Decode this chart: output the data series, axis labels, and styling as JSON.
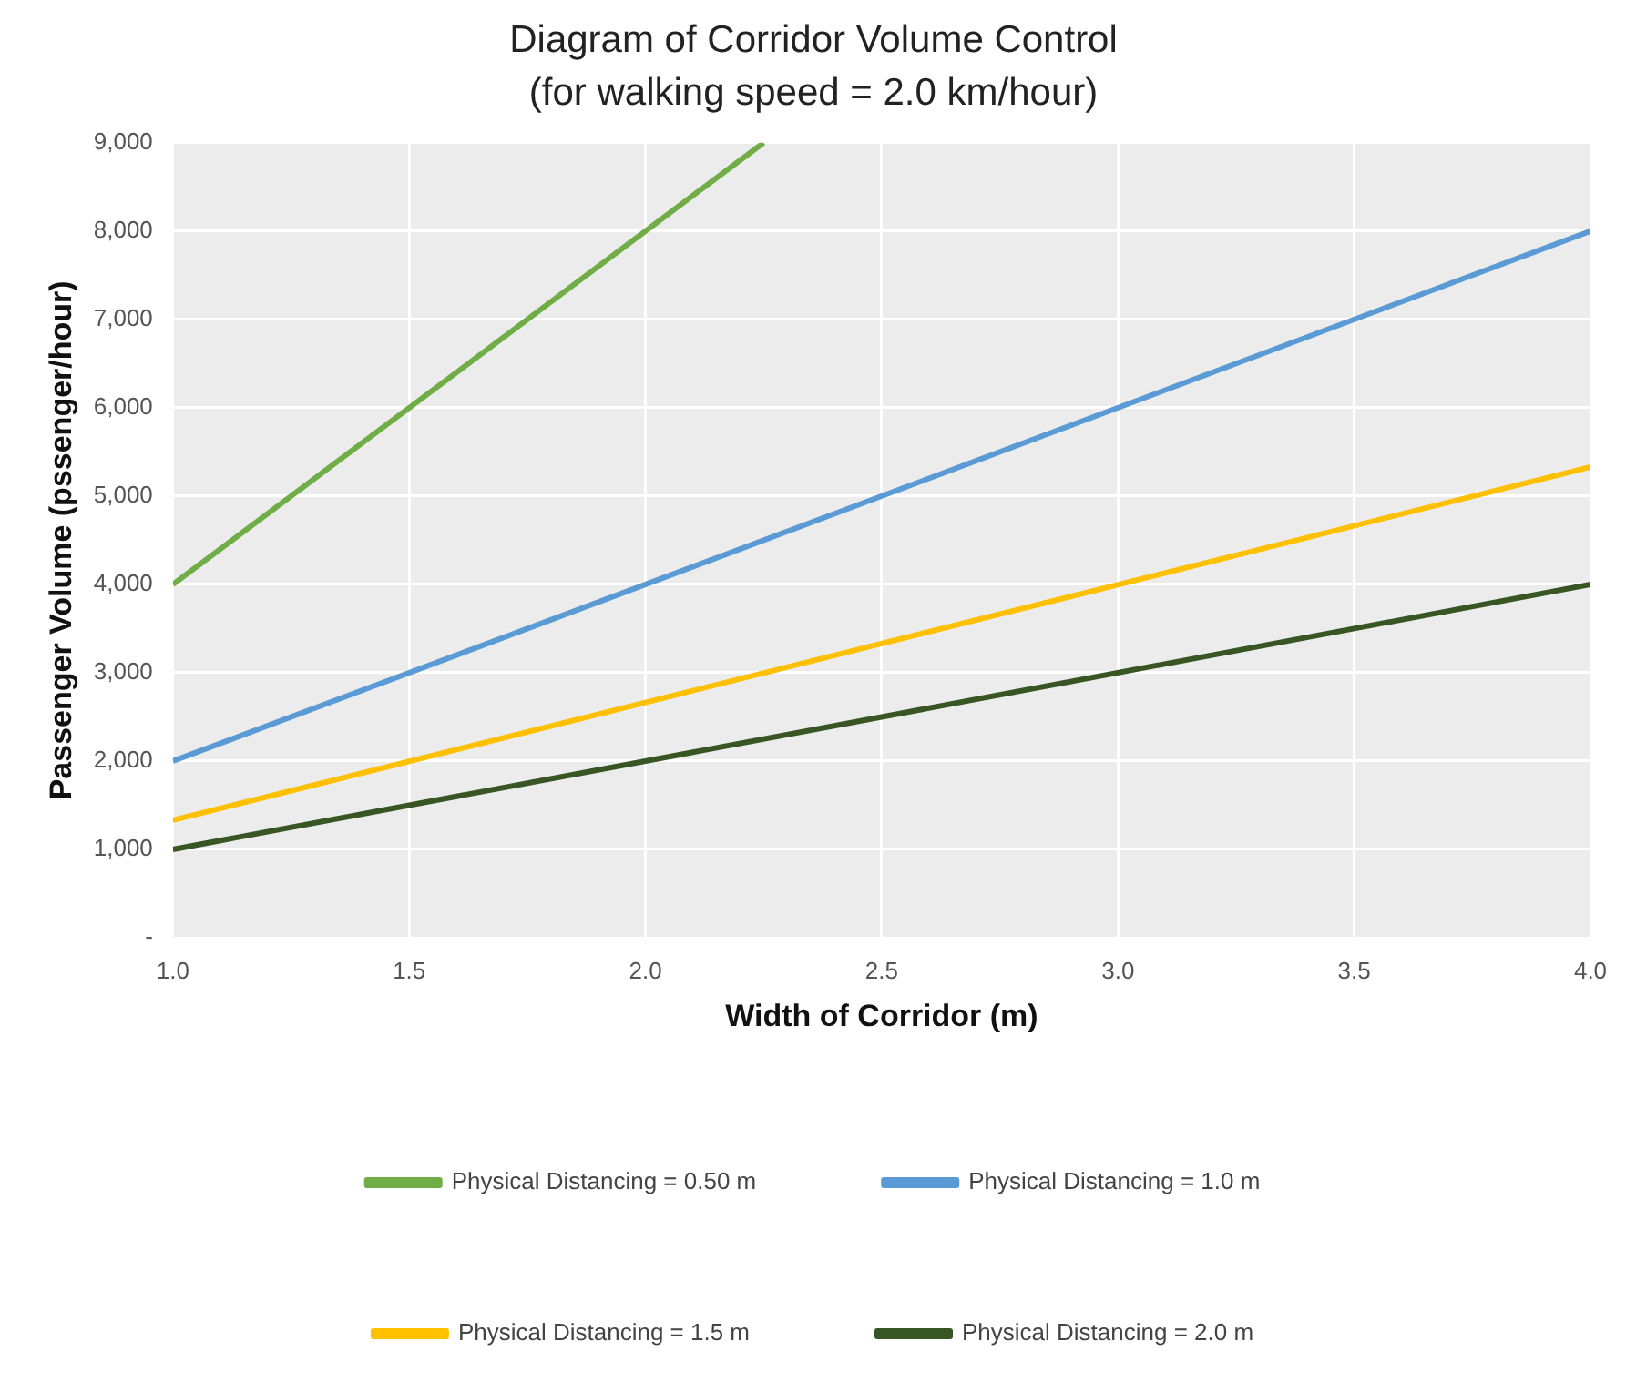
{
  "chart_data": {
    "type": "line",
    "title": "Diagram of Corridor Volume Control",
    "subtitle": "(for walking speed = 2.0 km/hour)",
    "xlabel": "Width of Corridor (m)",
    "ylabel": "Passenger Volume (pssenger/hour)",
    "series": [
      {
        "name": "Physical Distancing = 0.50 m",
        "color": "#70ad47",
        "x": [
          1.0,
          2.25
        ],
        "values": [
          4000,
          9000
        ]
      },
      {
        "name": "Physical Distancing = 1.0 m",
        "color": "#5b9bd5",
        "x": [
          1.0,
          4.0
        ],
        "values": [
          2000,
          8000
        ]
      },
      {
        "name": "Physical Distancing = 1.5 m",
        "color": "#ffc000",
        "x": [
          1.0,
          4.0
        ],
        "values": [
          1330,
          5330
        ]
      },
      {
        "name": "Physical Distancing = 2.0 m",
        "color": "#375623",
        "x": [
          1.0,
          4.0
        ],
        "values": [
          1000,
          4000
        ]
      }
    ],
    "xlim": [
      1.0,
      4.0
    ],
    "xticks": [
      {
        "value": 1,
        "label": "1.0"
      },
      1.5,
      {
        "value": 2,
        "label": "2.0"
      },
      2.5,
      {
        "value": 3,
        "label": "3.0"
      },
      3.5,
      {
        "value": 4,
        "label": "4.0"
      }
    ],
    "ylim": [
      0,
      9000
    ],
    "yticks": [
      {
        "value": 0,
        "label": "-"
      },
      {
        "value": 1000,
        "label": "1,000"
      },
      {
        "value": 2000,
        "label": "2,000"
      },
      {
        "value": 3000,
        "label": "3,000"
      },
      {
        "value": 4000,
        "label": "4,000"
      },
      {
        "value": 5000,
        "label": "5,000"
      },
      {
        "value": 6000,
        "label": "6,000"
      },
      {
        "value": 7000,
        "label": "7,000"
      },
      {
        "value": 8000,
        "label": "8,000"
      },
      {
        "value": 9000,
        "label": "9,000"
      }
    ],
    "grid": true,
    "legend": "bottom",
    "marker": "none",
    "line_style": "solid"
  }
}
